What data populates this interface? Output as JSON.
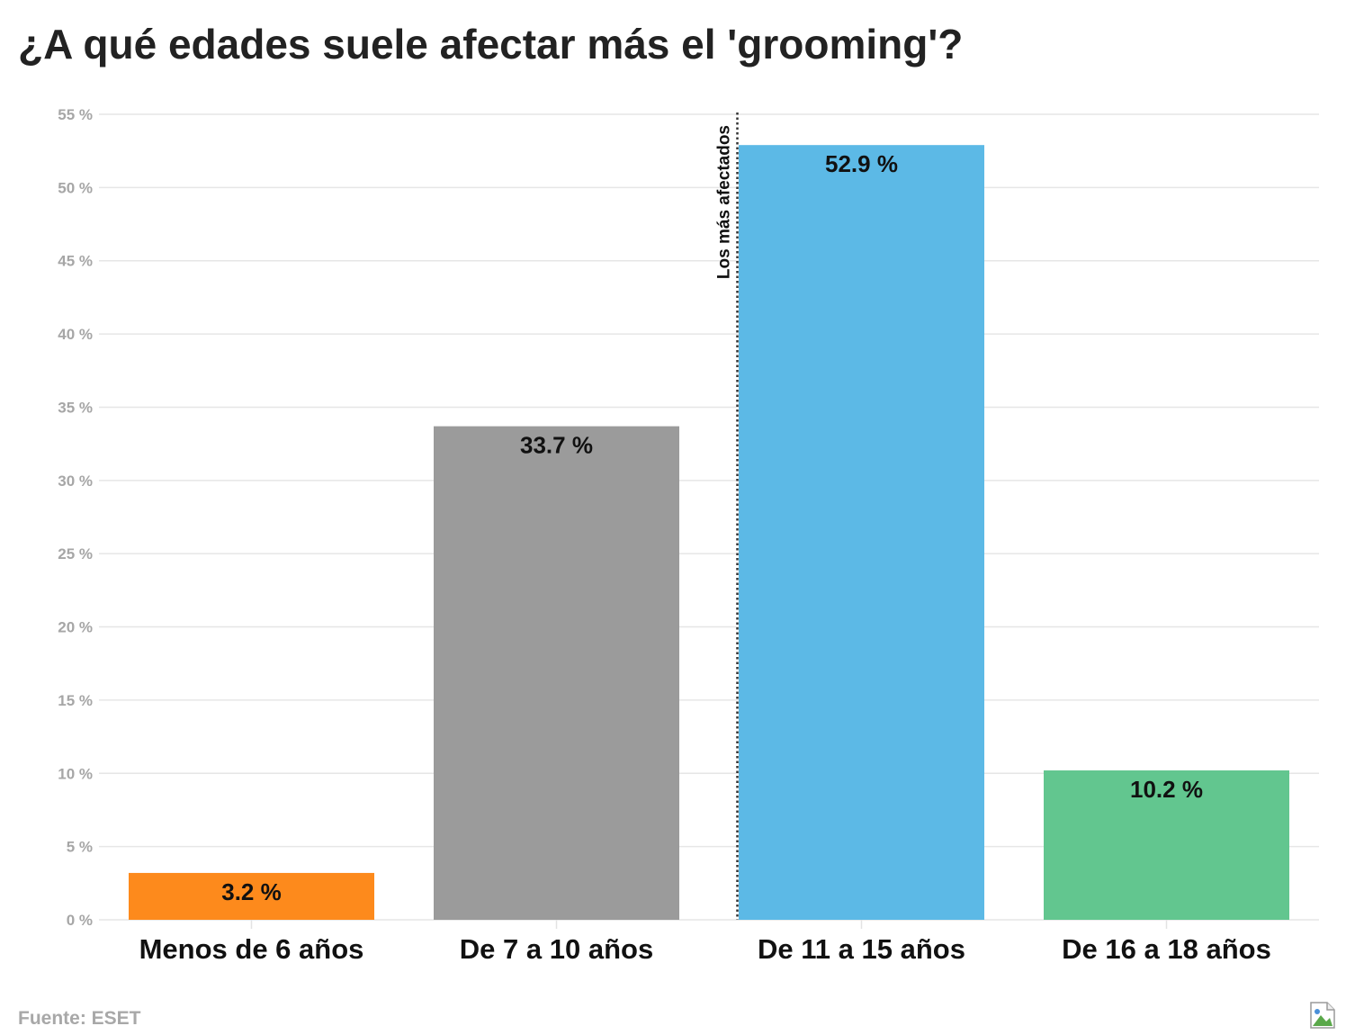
{
  "title": "¿A qué edades suele afectar más el 'grooming'?",
  "source": "Fuente: ESET",
  "chart_data": {
    "type": "bar",
    "title": "¿A qué edades suele afectar más el 'grooming'?",
    "xlabel": "",
    "ylabel": "",
    "categories": [
      "Menos de 6 años",
      "De 7 a 10 años",
      "De 11 a 15 años",
      "De 16 a 18 años"
    ],
    "values": [
      3.2,
      33.7,
      52.9,
      10.2
    ],
    "value_labels": [
      "3.2 %",
      "33.7 %",
      "52.9 %",
      "10.2 %"
    ],
    "colors": [
      "#fd8a1c",
      "#9b9b9b",
      "#5cb9e6",
      "#62c68f"
    ],
    "ylim": [
      0,
      55
    ],
    "y_ticks": [
      0,
      5,
      10,
      15,
      20,
      25,
      30,
      35,
      40,
      45,
      50,
      55
    ],
    "y_tick_labels": [
      "0 %",
      "5 %",
      "10 %",
      "15 %",
      "20 %",
      "25 %",
      "30 %",
      "35 %",
      "40 %",
      "45 %",
      "50 %",
      "55 %"
    ],
    "grid": true,
    "legend": "none",
    "annotation": {
      "text": "Los más afectados",
      "line_style": "dotted",
      "attached_category": "De 11 a 15 años",
      "side": "left"
    }
  }
}
